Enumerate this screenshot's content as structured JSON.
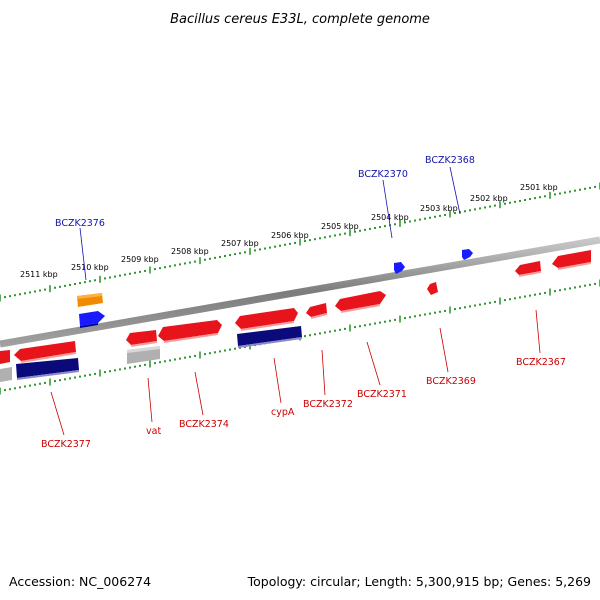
{
  "title": "Bacillus cereus E33L, complete genome",
  "footer": {
    "accession": "Accession: NC_006274",
    "summary": "Topology: circular; Length: 5,300,915 bp; Genes: 5,269"
  },
  "colors": {
    "cds_forward": "#e8141c",
    "cds_reverse": "#ff1a1a",
    "gene_blue": "#1a1aff",
    "gene_navy": "#0a0a7a",
    "orange_feature": "#f08a00",
    "grey_feature": "#b0b0b0",
    "backbone": "#8a8a8a",
    "tick_green": "#1a8a1a",
    "label_blue": "#1414aa",
    "label_red": "#cc0000"
  },
  "scale_labels": [
    "2501 kbp",
    "2502 kbp",
    "2503 kbp",
    "2504 kbp",
    "2505 kbp",
    "2506 kbp",
    "2507 kbp",
    "2508 kbp",
    "2509 kbp",
    "2510 kbp",
    "2511 kbp"
  ],
  "outer_gene_labels": [
    "BCZK2368",
    "BCZK2370",
    "BCZK2376"
  ],
  "inner_gene_labels": [
    "BCZK2367",
    "BCZK2369",
    "BCZK2371",
    "BCZK2372",
    "cypA",
    "BCZK2374",
    "vat",
    "BCZK2377"
  ]
}
